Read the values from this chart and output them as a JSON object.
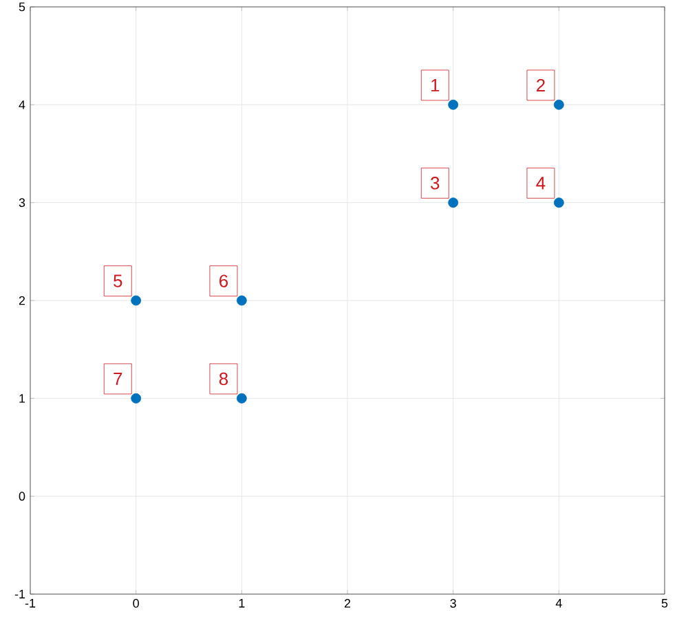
{
  "chart_data": {
    "type": "scatter",
    "x": [
      3,
      4,
      3,
      4,
      0,
      1,
      0,
      1
    ],
    "values": [
      4,
      4,
      3,
      3,
      2,
      2,
      1,
      1
    ],
    "color": "#0072bd",
    "marker": "circle",
    "xlim": [
      -1,
      5
    ],
    "ylim": [
      -1,
      5
    ],
    "xticks": [
      -1,
      0,
      1,
      2,
      3,
      4,
      5
    ],
    "yticks": [
      -1,
      0,
      1,
      2,
      3,
      4,
      5
    ],
    "grid": true,
    "annotations": [
      {
        "text": "1",
        "x": 3,
        "y": 4
      },
      {
        "text": "2",
        "x": 4,
        "y": 4
      },
      {
        "text": "3",
        "x": 3,
        "y": 3
      },
      {
        "text": "4",
        "x": 4,
        "y": 3
      },
      {
        "text": "5",
        "x": 0,
        "y": 2
      },
      {
        "text": "6",
        "x": 1,
        "y": 2
      },
      {
        "text": "7",
        "x": 0,
        "y": 1
      },
      {
        "text": "8",
        "x": 1,
        "y": 1
      }
    ]
  }
}
